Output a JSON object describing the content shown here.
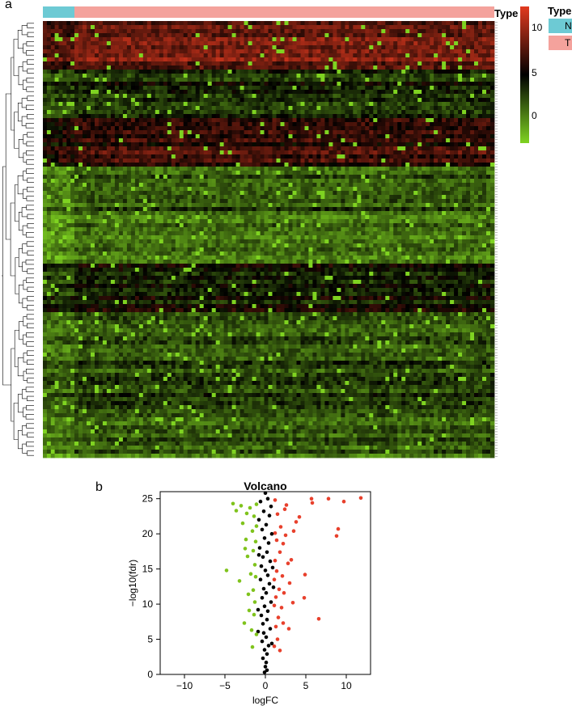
{
  "panels": {
    "a": {
      "label": "a"
    },
    "b": {
      "label": "b"
    }
  },
  "heatmap": {
    "annotation_title": "Type",
    "legend_title": "Type",
    "groups": [
      {
        "name": "N",
        "color": "#6dcad4"
      },
      {
        "name": "T",
        "color": "#f4a29c"
      }
    ],
    "colorbar": {
      "ticks": [
        10,
        5,
        0
      ],
      "low_color": "#7fd321",
      "mid_color": "#000000",
      "high_color": "#e23a1f"
    }
  },
  "chart_data": [
    {
      "type": "heatmap",
      "annotation": "Type",
      "groups": [
        "N",
        "T"
      ],
      "color_scale": {
        "min": -2,
        "max": 12,
        "ticks": [
          0,
          5,
          10
        ]
      },
      "row_clusters": [
        {
          "mean": 8.5
        },
        {
          "mean": 4.0
        },
        {
          "mean": 6.5
        },
        {
          "mean": 2.5
        },
        {
          "mean": 1.5
        },
        {
          "mean": 4.5
        },
        {
          "mean": 2.2
        },
        {
          "mean": 3.0
        },
        {
          "mean": 2.0
        }
      ]
    },
    {
      "type": "scatter",
      "title": "Volcano",
      "xlabel": "logFC",
      "ylabel": "−log10(fdr)",
      "xlim": [
        -13,
        13
      ],
      "ylim": [
        0,
        26
      ],
      "xticks": [
        -10,
        -5,
        0,
        5,
        10
      ],
      "yticks": [
        0,
        5,
        10,
        15,
        20,
        25
      ],
      "series": [
        {
          "color": "#e8402c",
          "points": [
            [
              11.8,
              25.1
            ],
            [
              9.7,
              24.6
            ],
            [
              9.0,
              20.7
            ],
            [
              8.8,
              19.7
            ],
            [
              7.8,
              25.0
            ],
            [
              6.6,
              7.9
            ],
            [
              5.8,
              24.4
            ],
            [
              5.7,
              25.0
            ],
            [
              4.9,
              14.2
            ],
            [
              4.8,
              10.9
            ],
            [
              4.2,
              22.4
            ],
            [
              3.8,
              21.7
            ],
            [
              3.5,
              20.4
            ],
            [
              3.2,
              16.3
            ],
            [
              3.0,
              13.0
            ],
            [
              2.8,
              15.8
            ],
            [
              2.6,
              24.1
            ],
            [
              2.4,
              23.5
            ],
            [
              2.2,
              18.6
            ],
            [
              2.0,
              9.5
            ],
            [
              1.9,
              21.0
            ],
            [
              1.8,
              17.4
            ],
            [
              1.7,
              12.1
            ],
            [
              1.6,
              8.1
            ],
            [
              1.5,
              5.0
            ],
            [
              1.5,
              22.8
            ],
            [
              1.4,
              19.1
            ],
            [
              1.4,
              14.7
            ],
            [
              1.3,
              11.0
            ],
            [
              1.3,
              6.8
            ],
            [
              1.2,
              24.8
            ],
            [
              1.2,
              20.1
            ],
            [
              1.2,
              16.2
            ],
            [
              1.1,
              13.5
            ],
            [
              1.1,
              9.8
            ],
            [
              1.1,
              4.0
            ],
            [
              2.3,
              11.6
            ],
            [
              2.1,
              14.0
            ],
            [
              2.5,
              19.8
            ],
            [
              3.4,
              10.2
            ],
            [
              2.9,
              6.5
            ],
            [
              1.8,
              3.4
            ],
            [
              2.2,
              7.3
            ]
          ]
        },
        {
          "color": "#000000",
          "points": [
            [
              0.0,
              25.8
            ],
            [
              0.3,
              25.0
            ],
            [
              -0.6,
              24.6
            ],
            [
              0.7,
              23.9
            ],
            [
              -0.2,
              23.2
            ],
            [
              0.5,
              22.6
            ],
            [
              -0.8,
              22.0
            ],
            [
              0.1,
              21.3
            ],
            [
              -0.4,
              20.6
            ],
            [
              0.8,
              20.0
            ],
            [
              -0.1,
              19.4
            ],
            [
              0.4,
              18.7
            ],
            [
              -0.7,
              18.0
            ],
            [
              0.2,
              17.4
            ],
            [
              -0.3,
              16.7
            ],
            [
              0.6,
              16.1
            ],
            [
              -0.5,
              15.4
            ],
            [
              0.0,
              14.8
            ],
            [
              0.3,
              14.1
            ],
            [
              -0.6,
              13.5
            ],
            [
              0.5,
              12.9
            ],
            [
              -0.2,
              12.2
            ],
            [
              0.1,
              11.6
            ],
            [
              -0.4,
              10.9
            ],
            [
              0.7,
              10.3
            ],
            [
              -0.1,
              9.7
            ],
            [
              0.3,
              9.0
            ],
            [
              -0.5,
              8.4
            ],
            [
              0.2,
              7.8
            ],
            [
              -0.3,
              7.2
            ],
            [
              0.6,
              6.5
            ],
            [
              -0.2,
              5.9
            ],
            [
              0.1,
              5.3
            ],
            [
              -0.4,
              4.7
            ],
            [
              0.4,
              4.1
            ],
            [
              -0.1,
              3.5
            ],
            [
              0.2,
              2.9
            ],
            [
              -0.3,
              2.3
            ],
            [
              0.1,
              1.7
            ],
            [
              0.0,
              1.1
            ],
            [
              0.2,
              0.6
            ],
            [
              -0.1,
              0.3
            ],
            [
              0.9,
              15.2
            ],
            [
              -0.9,
              9.2
            ],
            [
              0.8,
              4.4
            ],
            [
              -0.8,
              17.0
            ],
            [
              1.0,
              12.4
            ],
            [
              -0.9,
              6.1
            ]
          ]
        },
        {
          "color": "#7fc31c",
          "points": [
            [
              -4.8,
              14.8
            ],
            [
              -4.0,
              24.3
            ],
            [
              -3.6,
              23.3
            ],
            [
              -3.2,
              13.3
            ],
            [
              -3.0,
              24.0
            ],
            [
              -2.8,
              21.5
            ],
            [
              -2.6,
              7.3
            ],
            [
              -2.4,
              19.2
            ],
            [
              -2.2,
              16.8
            ],
            [
              -2.1,
              11.4
            ],
            [
              -2.0,
              9.1
            ],
            [
              -1.9,
              23.7
            ],
            [
              -1.8,
              14.3
            ],
            [
              -1.7,
              6.3
            ],
            [
              -1.6,
              20.4
            ],
            [
              -1.5,
              17.6
            ],
            [
              -1.5,
              12.0
            ],
            [
              -1.4,
              8.5
            ],
            [
              -1.4,
              22.5
            ],
            [
              -1.3,
              15.6
            ],
            [
              -1.3,
              10.3
            ],
            [
              -1.2,
              18.9
            ],
            [
              -1.2,
              13.9
            ],
            [
              -1.1,
              24.2
            ],
            [
              -1.1,
              5.7
            ],
            [
              -1.1,
              21.1
            ],
            [
              -2.3,
              22.9
            ],
            [
              -2.5,
              17.9
            ],
            [
              -1.6,
              3.9
            ]
          ]
        }
      ]
    }
  ]
}
